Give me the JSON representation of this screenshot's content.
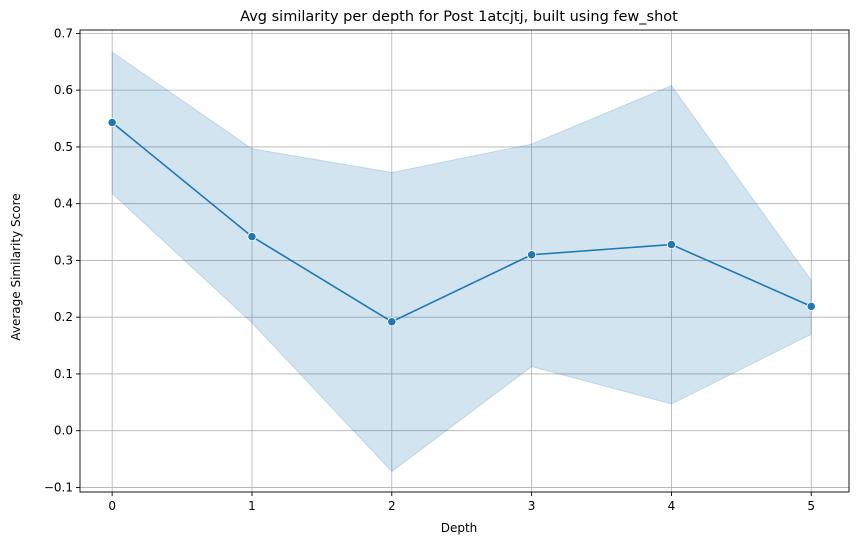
{
  "chart_data": {
    "type": "line",
    "title": "Avg similarity per depth for Post 1atcjtj, built using few_shot",
    "xlabel": "Depth",
    "ylabel": "Average Similarity Score",
    "x": [
      0,
      1,
      2,
      3,
      4,
      5
    ],
    "series": [
      {
        "values": [
          0.543,
          0.342,
          0.192,
          0.31,
          0.328,
          0.219
        ],
        "ci_lower": [
          0.418,
          0.19,
          -0.072,
          0.113,
          0.047,
          0.17
        ],
        "ci_upper": [
          0.667,
          0.497,
          0.455,
          0.505,
          0.608,
          0.265
        ]
      }
    ],
    "xlim": [
      -0.23,
      5.27
    ],
    "ylim": [
      -0.108,
      0.706
    ],
    "x_ticks": [
      "0",
      "1",
      "2",
      "3",
      "4",
      "5"
    ],
    "y_ticks": [
      "−0.1",
      "0.0",
      "0.1",
      "0.2",
      "0.3",
      "0.4",
      "0.5",
      "0.6",
      "0.7"
    ],
    "grid": true,
    "colors": {
      "line": "#1f77b4",
      "band": "#1f77b4",
      "grid": "#b0b0b0",
      "axes": "#000000"
    }
  }
}
